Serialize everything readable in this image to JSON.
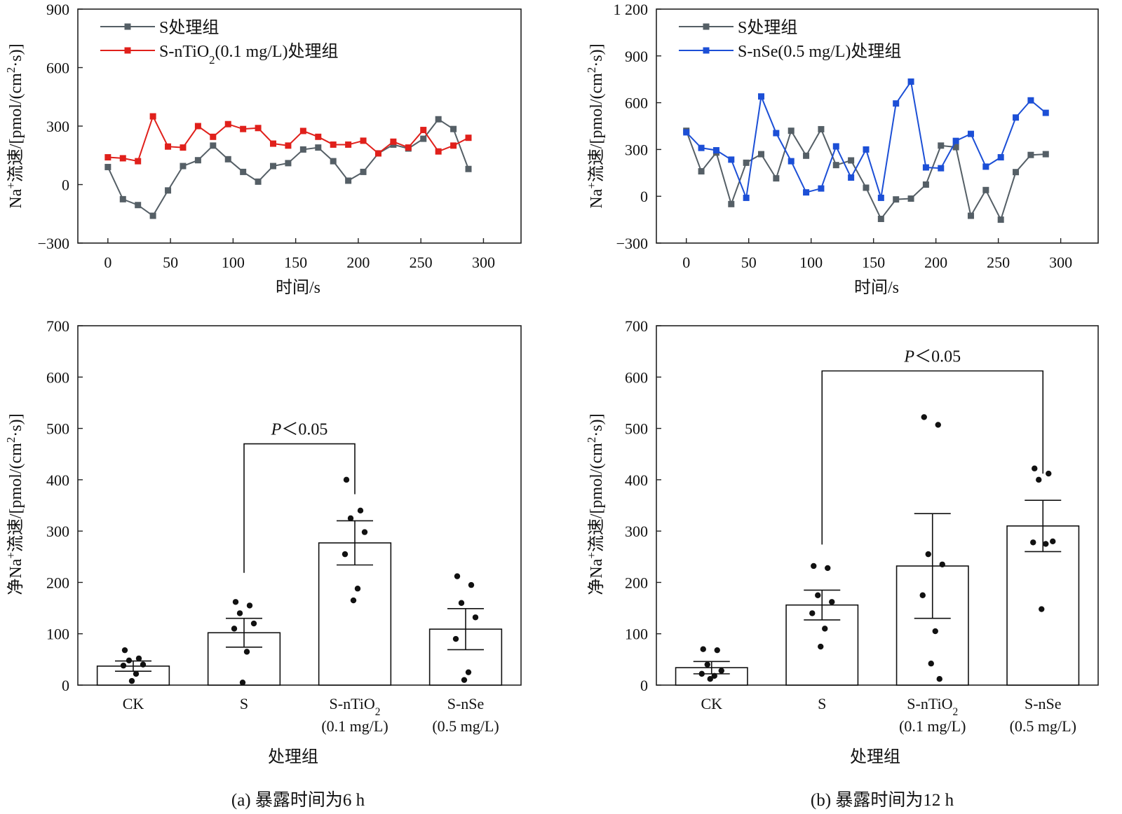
{
  "chart_data": [
    {
      "type": "line",
      "panel": "a",
      "xlabel": "时间/s",
      "ylabel": "Na⁺流速/[pmol/(cm²·s)]",
      "xlim": [
        -24,
        330
      ],
      "ylim": [
        -300,
        900
      ],
      "xticks": [
        "0",
        "50",
        "100",
        "150",
        "200",
        "250",
        "300"
      ],
      "yticks": [
        "−300",
        "0",
        "300",
        "600",
        "900"
      ],
      "legend_position": "top-left",
      "x": [
        0,
        12,
        24,
        36,
        48,
        60,
        72,
        84,
        96,
        108,
        120,
        132,
        144,
        156,
        168,
        180,
        192,
        204,
        216,
        228,
        240,
        252,
        264,
        276,
        288
      ],
      "series": [
        {
          "name": "S处理组",
          "color": "#555f66",
          "values": [
            90,
            -75,
            -105,
            -160,
            -30,
            95,
            125,
            200,
            130,
            65,
            15,
            95,
            110,
            180,
            190,
            120,
            20,
            65,
            160,
            205,
            185,
            235,
            335,
            285,
            80
          ]
        },
        {
          "name": "S-nTiO₂(0.1 mg/L)处理组",
          "color": "#e0201b",
          "values": [
            140,
            135,
            120,
            350,
            195,
            190,
            300,
            245,
            310,
            285,
            290,
            210,
            200,
            275,
            245,
            205,
            205,
            225,
            160,
            220,
            190,
            280,
            170,
            200,
            240
          ]
        }
      ]
    },
    {
      "type": "line",
      "panel": "b",
      "xlabel": "时间/s",
      "ylabel": "Na⁺流速/[pmol/(cm²·s)]",
      "xlim": [
        -24,
        330
      ],
      "ylim": [
        -300,
        1200
      ],
      "xticks": [
        "0",
        "50",
        "100",
        "150",
        "200",
        "250",
        "300"
      ],
      "yticks": [
        "−300",
        "0",
        "300",
        "600",
        "900",
        "1 200"
      ],
      "legend_position": "top-left",
      "x": [
        0,
        12,
        24,
        36,
        48,
        60,
        72,
        84,
        96,
        108,
        120,
        132,
        144,
        156,
        168,
        180,
        192,
        204,
        216,
        228,
        240,
        252,
        264,
        276,
        288
      ],
      "series": [
        {
          "name": "S处理组",
          "color": "#555f66",
          "values": [
            420,
            160,
            280,
            -50,
            215,
            270,
            115,
            420,
            260,
            430,
            200,
            230,
            55,
            -145,
            -20,
            -15,
            75,
            325,
            315,
            -125,
            40,
            -150,
            155,
            265,
            270
          ]
        },
        {
          "name": "S-nSe(0.5 mg/L)处理组",
          "color": "#1c4fd6",
          "values": [
            410,
            310,
            295,
            235,
            -10,
            640,
            405,
            225,
            25,
            50,
            320,
            120,
            300,
            -10,
            595,
            735,
            185,
            180,
            355,
            400,
            190,
            250,
            505,
            615,
            535
          ]
        }
      ]
    },
    {
      "type": "bar",
      "panel": "a",
      "xlabel": "处理组",
      "ylabel": "净Na⁺流速/[pmol/(cm²·s)]",
      "ylim": [
        0,
        700
      ],
      "yticks": [
        "0",
        "100",
        "200",
        "300",
        "400",
        "500",
        "600",
        "700"
      ],
      "categories": [
        {
          "line1": "CK",
          "line2": ""
        },
        {
          "line1": "S",
          "line2": ""
        },
        {
          "line1": "S-nTiO₂",
          "line2": "(0.1 mg/L)"
        },
        {
          "line1": "S-nSe",
          "line2": "(0.5 mg/L)"
        }
      ],
      "values": [
        37,
        102,
        277,
        109
      ],
      "errors": [
        10,
        28,
        43,
        40
      ],
      "points": [
        [
          68,
          52,
          48,
          40,
          38,
          22,
          8
        ],
        [
          162,
          155,
          140,
          120,
          110,
          65,
          5
        ],
        [
          400,
          340,
          325,
          298,
          255,
          188,
          165
        ],
        [
          212,
          195,
          160,
          132,
          90,
          25,
          10
        ]
      ],
      "significance": {
        "label": "P＜0.05",
        "from": 1,
        "to": 2,
        "y": 470
      }
    },
    {
      "type": "bar",
      "panel": "b",
      "xlabel": "处理组",
      "ylabel": "净Na⁺流速/[pmol/(cm²·s)]",
      "ylim": [
        0,
        700
      ],
      "yticks": [
        "0",
        "100",
        "200",
        "300",
        "400",
        "500",
        "600",
        "700"
      ],
      "categories": [
        {
          "line1": "CK",
          "line2": ""
        },
        {
          "line1": "S",
          "line2": ""
        },
        {
          "line1": "S-nTiO₂",
          "line2": "(0.1 mg/L)"
        },
        {
          "line1": "S-nSe",
          "line2": "(0.5 mg/L)"
        }
      ],
      "values": [
        34,
        156,
        232,
        310
      ],
      "errors": [
        12,
        29,
        102,
        50
      ],
      "points": [
        [
          70,
          68,
          40,
          28,
          22,
          18,
          12
        ],
        [
          232,
          228,
          175,
          162,
          140,
          110,
          75
        ],
        [
          522,
          507,
          255,
          235,
          175,
          105,
          42,
          12
        ],
        [
          422,
          412,
          400,
          280,
          278,
          275,
          148
        ]
      ],
      "significance": {
        "label": "P＜0.05",
        "from": 1,
        "to": 3,
        "y": 612
      }
    }
  ],
  "captions": {
    "a": "(a) 暴露时间为6 h",
    "b": "(b) 暴露时间为12 h"
  }
}
